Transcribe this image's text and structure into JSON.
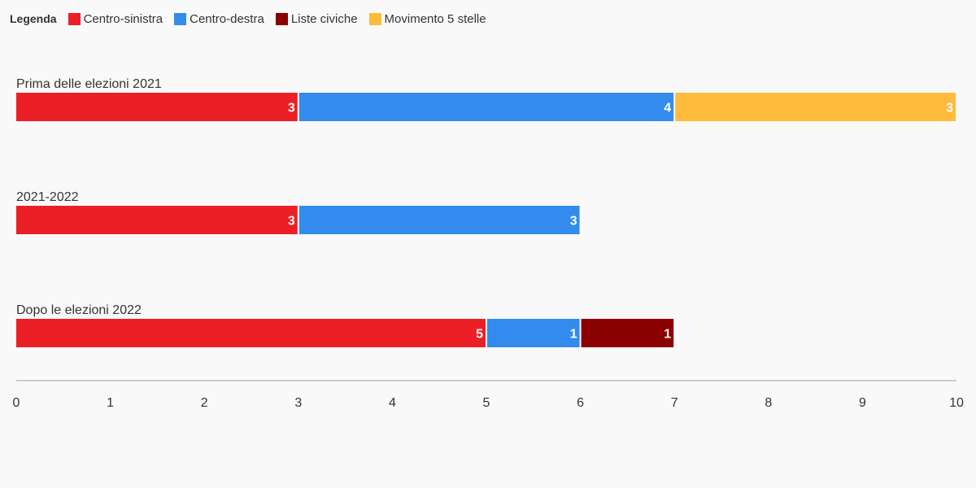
{
  "legend": {
    "title": "Legenda",
    "items": [
      {
        "label": "Centro-sinistra",
        "color": "#eb1f26"
      },
      {
        "label": "Centro-destra",
        "color": "#338ced"
      },
      {
        "label": "Liste civiche",
        "color": "#8b0000"
      },
      {
        "label": "Movimento 5 stelle",
        "color": "#ffbb3b"
      }
    ]
  },
  "chart_data": {
    "type": "bar",
    "orientation": "horizontal",
    "stacked": true,
    "categories": [
      "Prima delle elezioni 2021",
      "2021-2022",
      "Dopo le elezioni 2022"
    ],
    "series": [
      {
        "name": "Centro-sinistra",
        "color": "#eb1f26",
        "values": [
          3,
          3,
          5
        ]
      },
      {
        "name": "Centro-destra",
        "color": "#338ced",
        "values": [
          4,
          3,
          1
        ]
      },
      {
        "name": "Liste civiche",
        "color": "#8b0000",
        "values": [
          0,
          0,
          1
        ]
      },
      {
        "name": "Movimento 5 stelle",
        "color": "#ffbb3b",
        "values": [
          3,
          0,
          0
        ]
      }
    ],
    "xlim": [
      0,
      10
    ],
    "xticks": [
      "0",
      "1",
      "2",
      "3",
      "4",
      "5",
      "6",
      "7",
      "8",
      "9",
      "10"
    ],
    "title": "",
    "xlabel": "",
    "ylabel": "",
    "grid": false,
    "legend_position": "top-left",
    "data_labels": true
  }
}
